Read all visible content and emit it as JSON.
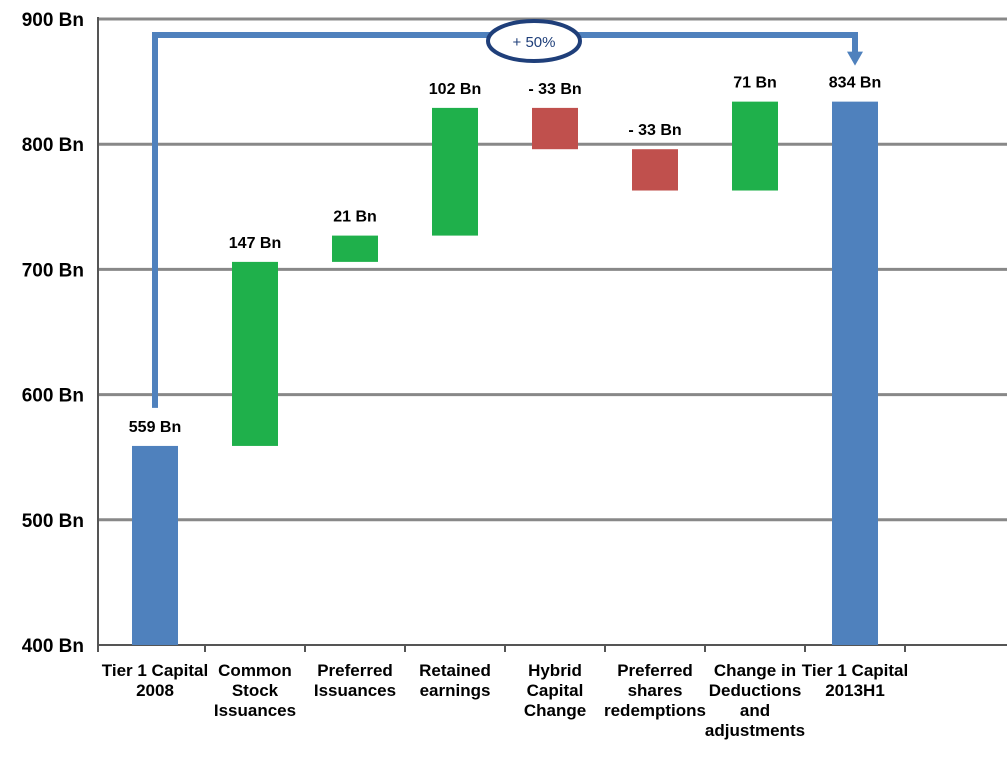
{
  "chart_data": {
    "type": "bar",
    "subtype": "waterfall",
    "title": "",
    "xlabel": "",
    "ylabel": "",
    "ylim": [
      400,
      900
    ],
    "yticks": [
      "400 Bn",
      "500 Bn",
      "600 Bn",
      "700 Bn",
      "800 Bn",
      "900 Bn"
    ],
    "ytick_values": [
      400,
      500,
      600,
      700,
      800,
      900
    ],
    "grid": true,
    "categories": [
      [
        "Tier 1 Capital",
        "2008"
      ],
      [
        "Common",
        "Stock",
        "Issuances"
      ],
      [
        "Preferred",
        "Issuances"
      ],
      [
        "Retained",
        "earnings"
      ],
      [
        "Hybrid",
        "Capital",
        "Change"
      ],
      [
        "Preferred",
        "shares",
        "redemptions"
      ],
      [
        "Change in",
        "Deductions",
        "and",
        "adjustments"
      ],
      [
        "Tier 1 Capital",
        "2013H1"
      ]
    ],
    "bars": [
      {
        "kind": "total",
        "start": 400,
        "end": 559,
        "label": "559 Bn"
      },
      {
        "kind": "increase",
        "start": 559,
        "end": 706,
        "label": "147 Bn"
      },
      {
        "kind": "increase",
        "start": 706,
        "end": 727,
        "label": "21 Bn"
      },
      {
        "kind": "increase",
        "start": 727,
        "end": 829,
        "label": "102 Bn"
      },
      {
        "kind": "decrease",
        "start": 829,
        "end": 796,
        "label": "- 33 Bn"
      },
      {
        "kind": "decrease",
        "start": 796,
        "end": 763,
        "label": "- 33 Bn"
      },
      {
        "kind": "increase",
        "start": 763,
        "end": 834,
        "label": "71 Bn"
      },
      {
        "kind": "total",
        "start": 400,
        "end": 834,
        "label": "834 Bn"
      }
    ],
    "annotation": {
      "text": "+ 50%",
      "from_category": 0,
      "to_category": 7
    },
    "colors": {
      "total": "#4f81bd",
      "increase": "#1fb04b",
      "decrease": "#c0504d",
      "grid": "#888888",
      "arrow": "#4f81bd",
      "annotation_border": "#1f3f7a"
    }
  }
}
